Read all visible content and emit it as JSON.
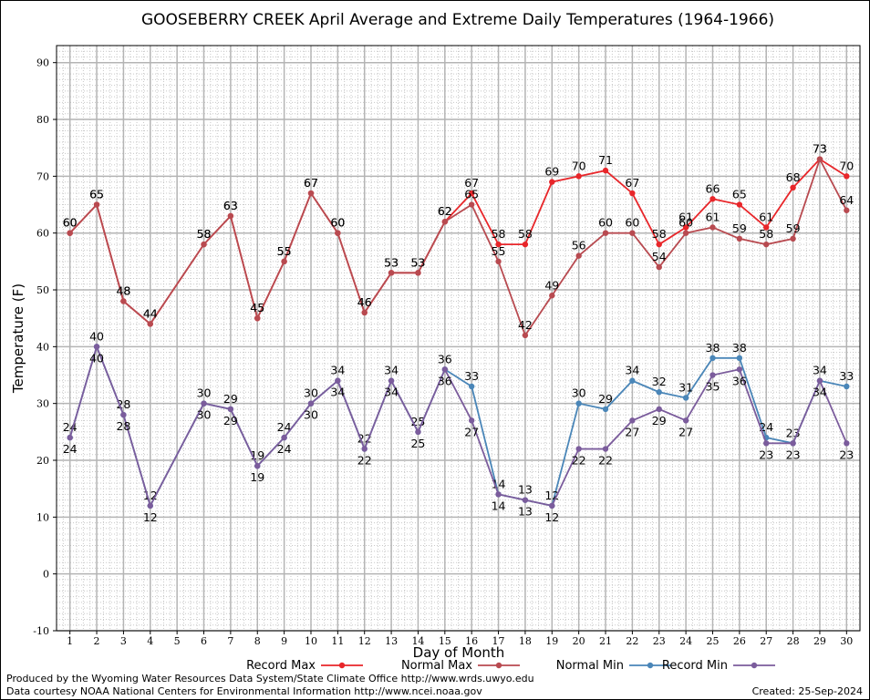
{
  "chart_data": {
    "type": "line",
    "title": "GOOSEBERRY CREEK April Average and Extreme Daily Temperatures (1964-1966)",
    "xlabel": "Day of Month",
    "ylabel": "Temperature (F)",
    "xlim": [
      0.5,
      30.5
    ],
    "ylim": [
      -10,
      93
    ],
    "x_ticks": [
      "1",
      "2",
      "3",
      "4",
      "5",
      "6",
      "7",
      "8",
      "9",
      "10",
      "11",
      "12",
      "13",
      "14",
      "15",
      "16",
      "17",
      "18",
      "19",
      "20",
      "21",
      "22",
      "23",
      "24",
      "25",
      "26",
      "27",
      "28",
      "29",
      "30"
    ],
    "y_ticks": [
      "-10",
      "0",
      "10",
      "20",
      "30",
      "40",
      "50",
      "60",
      "70",
      "80",
      "90"
    ],
    "grid": true,
    "series": [
      {
        "name": "Record Max",
        "color": "#e8262a",
        "labels_above": true,
        "points": [
          [
            1,
            60
          ],
          [
            2,
            65
          ],
          [
            3,
            48
          ],
          [
            4,
            44
          ],
          [
            6,
            58
          ],
          [
            7,
            63
          ],
          [
            8,
            45
          ],
          [
            9,
            55
          ],
          [
            10,
            67
          ],
          [
            11,
            60
          ],
          [
            12,
            46
          ],
          [
            13,
            53
          ],
          [
            14,
            53
          ],
          [
            15,
            62
          ],
          [
            16,
            67
          ],
          [
            17,
            58
          ],
          [
            18,
            58
          ],
          [
            19,
            69
          ],
          [
            20,
            70
          ],
          [
            21,
            71
          ],
          [
            22,
            67
          ],
          [
            23,
            58
          ],
          [
            24,
            61
          ],
          [
            25,
            66
          ],
          [
            26,
            65
          ],
          [
            27,
            61
          ],
          [
            28,
            68
          ],
          [
            29,
            73
          ],
          [
            30,
            70
          ]
        ]
      },
      {
        "name": "Normal Max",
        "color": "#b84a50",
        "labels_above": true,
        "points": [
          [
            1,
            60
          ],
          [
            2,
            65
          ],
          [
            3,
            48
          ],
          [
            4,
            44
          ],
          [
            6,
            58
          ],
          [
            7,
            63
          ],
          [
            8,
            45
          ],
          [
            9,
            55
          ],
          [
            10,
            67
          ],
          [
            11,
            60
          ],
          [
            12,
            46
          ],
          [
            13,
            53
          ],
          [
            14,
            53
          ],
          [
            15,
            62
          ],
          [
            16,
            65
          ],
          [
            17,
            55
          ],
          [
            18,
            42
          ],
          [
            19,
            49
          ],
          [
            20,
            56
          ],
          [
            21,
            60
          ],
          [
            22,
            60
          ],
          [
            23,
            54
          ],
          [
            24,
            60
          ],
          [
            25,
            61
          ],
          [
            26,
            59
          ],
          [
            27,
            58
          ],
          [
            28,
            59
          ],
          [
            29,
            73
          ],
          [
            30,
            64
          ]
        ]
      },
      {
        "name": "Normal Min",
        "color": "#4a86b8",
        "labels_above": true,
        "points": [
          [
            1,
            24
          ],
          [
            2,
            40
          ],
          [
            3,
            28
          ],
          [
            4,
            12
          ],
          [
            6,
            30
          ],
          [
            7,
            29
          ],
          [
            8,
            19
          ],
          [
            9,
            24
          ],
          [
            10,
            30
          ],
          [
            11,
            34
          ],
          [
            12,
            22
          ],
          [
            13,
            34
          ],
          [
            14,
            25
          ],
          [
            15,
            36
          ],
          [
            16,
            33
          ],
          [
            17,
            14
          ],
          [
            18,
            13
          ],
          [
            19,
            12
          ],
          [
            20,
            30
          ],
          [
            21,
            29
          ],
          [
            22,
            34
          ],
          [
            23,
            32
          ],
          [
            24,
            31
          ],
          [
            25,
            38
          ],
          [
            26,
            38
          ],
          [
            27,
            24
          ],
          [
            28,
            23
          ],
          [
            29,
            34
          ],
          [
            30,
            33
          ]
        ]
      },
      {
        "name": "Record Min",
        "color": "#7b5c9c",
        "labels_above": false,
        "points": [
          [
            1,
            24
          ],
          [
            2,
            40
          ],
          [
            3,
            28
          ],
          [
            4,
            12
          ],
          [
            6,
            30
          ],
          [
            7,
            29
          ],
          [
            8,
            19
          ],
          [
            9,
            24
          ],
          [
            10,
            30
          ],
          [
            11,
            34
          ],
          [
            12,
            22
          ],
          [
            13,
            34
          ],
          [
            14,
            25
          ],
          [
            15,
            36
          ],
          [
            16,
            27
          ],
          [
            17,
            14
          ],
          [
            18,
            13
          ],
          [
            19,
            12
          ],
          [
            20,
            22
          ],
          [
            21,
            22
          ],
          [
            22,
            27
          ],
          [
            23,
            29
          ],
          [
            24,
            27
          ],
          [
            25,
            35
          ],
          [
            26,
            36
          ],
          [
            27,
            23
          ],
          [
            28,
            23
          ],
          [
            29,
            34
          ],
          [
            30,
            23
          ]
        ]
      }
    ]
  },
  "footer": {
    "left_line1": "Produced by the Wyoming Water Resources Data System/State Climate Office http://www.wrds.uwyo.edu",
    "left_line2": "Data courtesy NOAA National Centers for Environmental Information http://www.ncei.noaa.gov",
    "created": "Created:  25-Sep-2024"
  }
}
